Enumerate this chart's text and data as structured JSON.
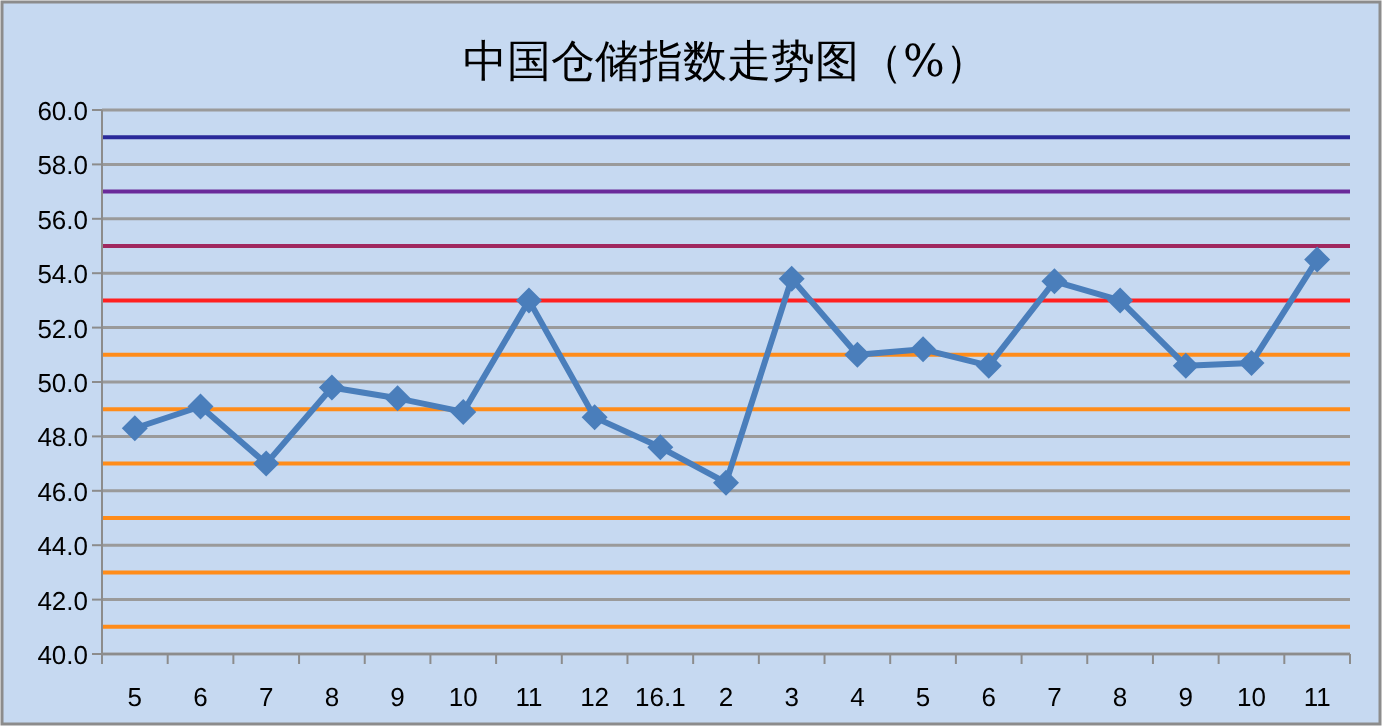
{
  "chart_data": {
    "type": "line",
    "title": "中国仓储指数走势图（%）",
    "categories": [
      "5",
      "6",
      "7",
      "8",
      "9",
      "10",
      "11",
      "12",
      "16.1",
      "2",
      "3",
      "4",
      "5",
      "6",
      "7",
      "8",
      "9",
      "10",
      "11"
    ],
    "series": [
      {
        "color": "#4a7ebb",
        "values": [
          48.3,
          49.1,
          47.0,
          49.8,
          49.4,
          48.9,
          53.0,
          48.7,
          47.6,
          46.3,
          53.8,
          51.0,
          51.2,
          50.6,
          53.7,
          53.0,
          50.6,
          50.7,
          54.5
        ]
      }
    ],
    "ylim": [
      40,
      60
    ],
    "yticks": [
      {
        "value": 40,
        "label": "40.0"
      },
      {
        "value": 42,
        "label": "42.0"
      },
      {
        "value": 44,
        "label": "44.0"
      },
      {
        "value": 46,
        "label": "46.0"
      },
      {
        "value": 48,
        "label": "48.0"
      },
      {
        "value": 50,
        "label": "50.0"
      },
      {
        "value": 52,
        "label": "52.0"
      },
      {
        "value": 54,
        "label": "54.0"
      },
      {
        "value": 56,
        "label": "56.0"
      },
      {
        "value": 58,
        "label": "58.0"
      },
      {
        "value": 60,
        "label": "60.0"
      }
    ],
    "grid": "y",
    "marker": "diamond",
    "line_style": "solid",
    "ref_lines": [
      {
        "axis": "y",
        "value": 41,
        "color": "#ff8c1a"
      },
      {
        "axis": "y",
        "value": 43,
        "color": "#ff8c1a"
      },
      {
        "axis": "y",
        "value": 45,
        "color": "#ff8c1a"
      },
      {
        "axis": "y",
        "value": 47,
        "color": "#ff8c1a"
      },
      {
        "axis": "y",
        "value": 49,
        "color": "#ff8c1a"
      },
      {
        "axis": "y",
        "value": 51,
        "color": "#ff8c1a"
      },
      {
        "axis": "y",
        "value": 53,
        "color": "#ff2020"
      },
      {
        "axis": "y",
        "value": 55,
        "color": "#a0285f"
      },
      {
        "axis": "y",
        "value": 57,
        "color": "#6a2a9a"
      },
      {
        "axis": "y",
        "value": 59,
        "color": "#2a2a9a"
      }
    ]
  }
}
